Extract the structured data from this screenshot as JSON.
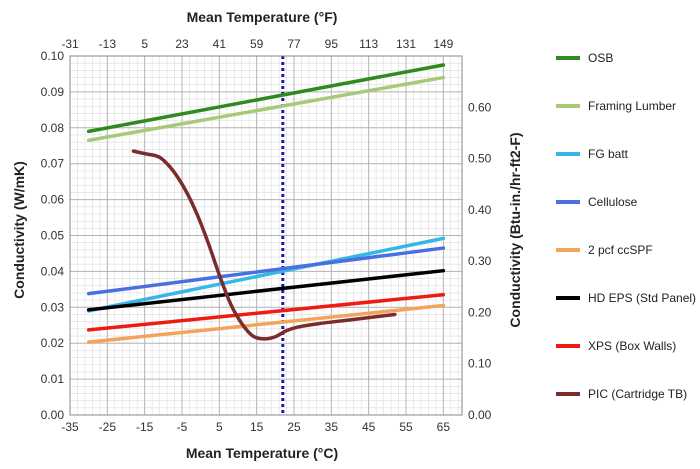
{
  "chart_data": {
    "type": "line",
    "title": "",
    "xlabel": "Mean Temperature (°C)",
    "x2label": "Mean Temperature (°F)",
    "ylabel": "Conductivity (W/mK)",
    "y2label": "Conductivity (Btu-in./hr-ft2-F)",
    "xlim": [
      -35,
      70
    ],
    "ylim": [
      0,
      0.1
    ],
    "y2lim": [
      0,
      0.7
    ],
    "grid": true,
    "legend_position": "right",
    "x_ticks": [
      "-35",
      "-25",
      "-15",
      "-5",
      "5",
      "15",
      "25",
      "35",
      "45",
      "55",
      "65"
    ],
    "x2_ticks": [
      "-31",
      "-13",
      "5",
      "23",
      "41",
      "59",
      "77",
      "95",
      "113",
      "131",
      "149"
    ],
    "y_ticks": [
      "0.00",
      "0.01",
      "0.02",
      "0.03",
      "0.04",
      "0.05",
      "0.06",
      "0.07",
      "0.08",
      "0.09",
      "0.10"
    ],
    "y2_ticks": [
      "0.00",
      "0.10",
      "0.20",
      "0.30",
      "0.40",
      "0.50",
      "0.60"
    ],
    "reference_line": {
      "x": 22,
      "color": "#1a1aa6"
    },
    "series": [
      {
        "name": "OSB",
        "color": "#2f8a1f",
        "x": [
          -30,
          65
        ],
        "y": [
          0.079,
          0.0975
        ]
      },
      {
        "name": "Framing Lumber",
        "color": "#a9c97a",
        "x": [
          -30,
          65
        ],
        "y": [
          0.0765,
          0.094
        ]
      },
      {
        "name": "FG batt",
        "color": "#33b8e8",
        "x": [
          -30,
          65
        ],
        "y": [
          0.029,
          0.0492
        ]
      },
      {
        "name": "Cellulose",
        "color": "#4a6fe0",
        "x": [
          -30,
          65
        ],
        "y": [
          0.0338,
          0.0465
        ]
      },
      {
        "name": "2 pcf ccSPF",
        "color": "#f2a45a",
        "x": [
          -30,
          65
        ],
        "y": [
          0.0203,
          0.0305
        ]
      },
      {
        "name": "HD EPS (Std Panel)",
        "color": "#000000",
        "x": [
          -30,
          65
        ],
        "y": [
          0.0293,
          0.0402
        ]
      },
      {
        "name": "XPS (Box Walls)",
        "color": "#ee1c10",
        "x": [
          -30,
          65
        ],
        "y": [
          0.0237,
          0.0335
        ]
      },
      {
        "name": "PIC (Cartridge TB)",
        "color": "#7b2d2d",
        "x": [
          -18,
          -15,
          -12,
          -10,
          -7,
          -4,
          -1,
          2,
          5,
          8,
          11,
          14,
          17,
          20,
          23,
          26,
          32,
          40,
          48,
          52
        ],
        "y": [
          0.0735,
          0.0728,
          0.0722,
          0.071,
          0.0675,
          0.0625,
          0.056,
          0.048,
          0.039,
          0.031,
          0.0255,
          0.022,
          0.0212,
          0.0218,
          0.0235,
          0.0245,
          0.0255,
          0.0265,
          0.0275,
          0.028
        ]
      }
    ]
  }
}
